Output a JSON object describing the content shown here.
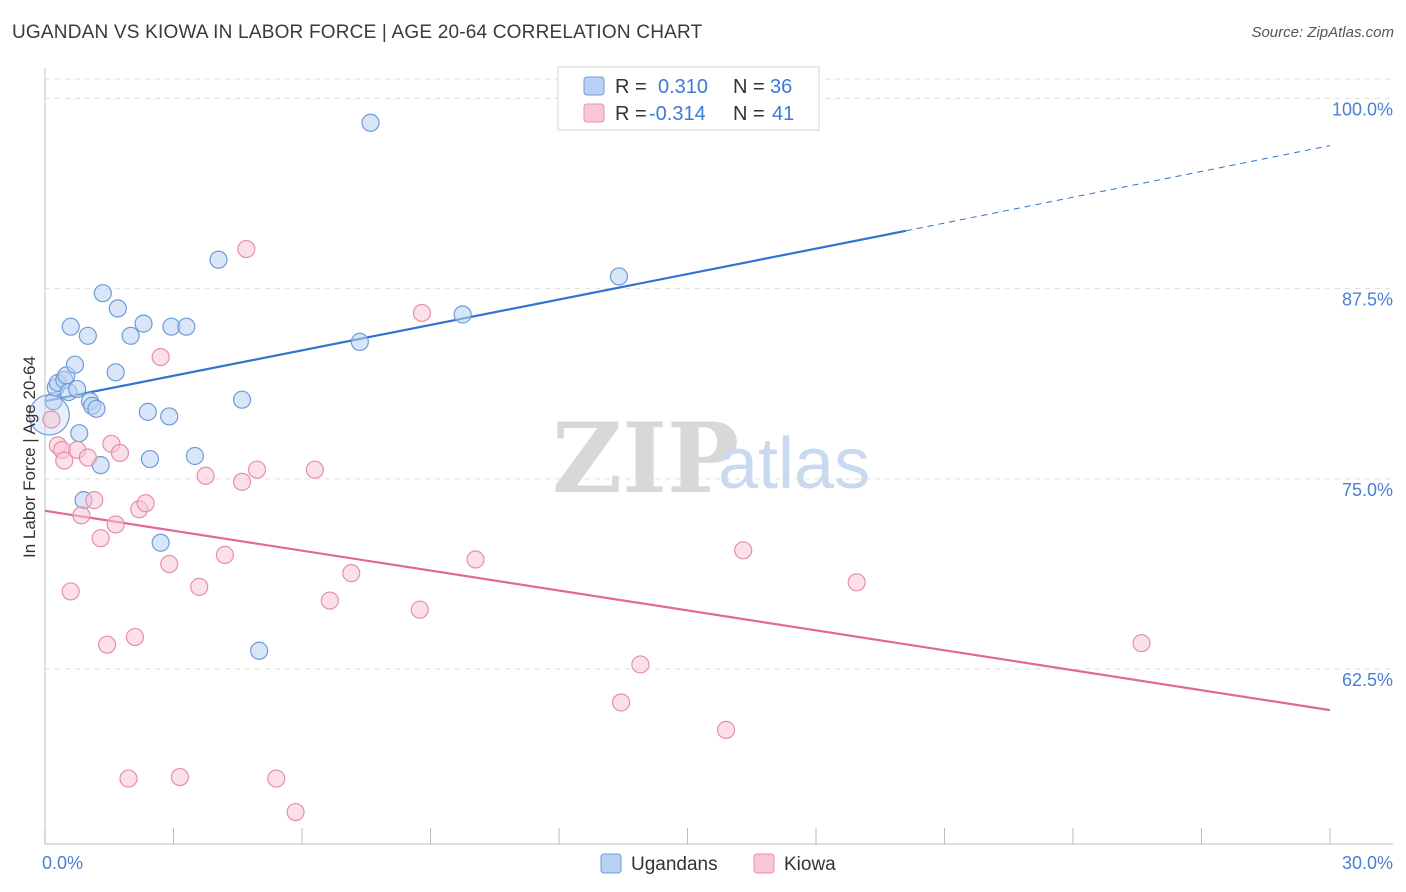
{
  "title": "UGANDAN VS KIOWA IN LABOR FORCE | AGE 20-64 CORRELATION CHART",
  "source": "Source: ZipAtlas.com",
  "watermark": {
    "zip": "ZIP",
    "atlas": "atlas"
  },
  "colors": {
    "ugandans_fill": "#b9d1f3",
    "ugandans_stroke": "#6f9bd8",
    "ugandans_line": "#2f74d0",
    "kiowa_fill": "#f8c7d6",
    "kiowa_stroke": "#e58fac",
    "kiowa_line": "#e2679a",
    "grid": "#dddddd",
    "tick_label": "#4a7fd4"
  },
  "legend": {
    "rows": [
      {
        "r_label": "R =",
        "r_value": "0.310",
        "n_label": "N =",
        "n_value": "36"
      },
      {
        "r_label": "R =",
        "r_value": "-0.314",
        "n_label": "N =",
        "n_value": "41"
      }
    ]
  },
  "bottom_legend": {
    "ugandans": "Ugandans",
    "kiowa": "Kiowa"
  },
  "chart_data": {
    "type": "scatter",
    "title": "UGANDAN VS KIOWA IN LABOR FORCE | AGE 20-64 CORRELATION CHART",
    "xlabel": "",
    "ylabel": "In Labor Force | Age 20-64",
    "xlim": [
      0,
      30
    ],
    "ylim": [
      51,
      102
    ],
    "x_tick_labels": [
      "0.0%",
      "30.0%"
    ],
    "y_ticks": [
      62.5,
      75.0,
      87.5,
      100.0
    ],
    "y_tick_labels": [
      "62.5%",
      "75.0%",
      "87.5%",
      "100.0%"
    ],
    "series": [
      {
        "name": "Ugandans",
        "points": [
          [
            0.2,
            80.1
          ],
          [
            0.25,
            81.0
          ],
          [
            0.3,
            81.3
          ],
          [
            0.45,
            81.5
          ],
          [
            0.5,
            81.8
          ],
          [
            0.55,
            80.7
          ],
          [
            0.6,
            85.0
          ],
          [
            0.7,
            82.5
          ],
          [
            0.75,
            80.9
          ],
          [
            0.8,
            78.0
          ],
          [
            0.9,
            73.6
          ],
          [
            1.0,
            84.4
          ],
          [
            1.05,
            80.1
          ],
          [
            1.1,
            79.8
          ],
          [
            1.2,
            79.6
          ],
          [
            1.3,
            75.9
          ],
          [
            1.35,
            87.2
          ],
          [
            1.65,
            82.0
          ],
          [
            1.7,
            86.2
          ],
          [
            2.0,
            84.4
          ],
          [
            2.3,
            85.2
          ],
          [
            2.4,
            79.4
          ],
          [
            2.45,
            76.3
          ],
          [
            2.7,
            70.8
          ],
          [
            2.9,
            79.1
          ],
          [
            2.95,
            85.0
          ],
          [
            3.3,
            85.0
          ],
          [
            3.5,
            76.5
          ],
          [
            4.05,
            89.4
          ],
          [
            4.6,
            80.2
          ],
          [
            5.0,
            63.7
          ],
          [
            7.35,
            84.0
          ],
          [
            7.6,
            98.4
          ],
          [
            9.75,
            85.8
          ],
          [
            13.4,
            88.3
          ],
          [
            0.1,
            79.2
          ]
        ],
        "trend": {
          "x": [
            0,
            20.1
          ],
          "y": [
            80.1,
            91.3
          ]
        },
        "trend_extension": {
          "x": [
            20.1,
            30.0
          ],
          "y": [
            91.3,
            96.9
          ]
        }
      },
      {
        "name": "Kiowa",
        "points": [
          [
            0.15,
            78.9
          ],
          [
            0.3,
            77.2
          ],
          [
            0.4,
            76.9
          ],
          [
            0.45,
            76.2
          ],
          [
            0.6,
            67.6
          ],
          [
            0.75,
            76.9
          ],
          [
            0.85,
            72.6
          ],
          [
            1.0,
            76.4
          ],
          [
            1.15,
            73.6
          ],
          [
            1.3,
            71.1
          ],
          [
            1.45,
            64.1
          ],
          [
            1.55,
            77.3
          ],
          [
            1.65,
            72.0
          ],
          [
            1.75,
            76.7
          ],
          [
            1.95,
            55.3
          ],
          [
            2.1,
            64.6
          ],
          [
            2.2,
            73.0
          ],
          [
            2.35,
            73.4
          ],
          [
            2.7,
            83.0
          ],
          [
            2.9,
            69.4
          ],
          [
            3.15,
            55.4
          ],
          [
            3.6,
            67.9
          ],
          [
            3.75,
            75.2
          ],
          [
            4.2,
            70.0
          ],
          [
            4.6,
            74.8
          ],
          [
            4.7,
            90.1
          ],
          [
            4.95,
            75.6
          ],
          [
            5.4,
            55.3
          ],
          [
            5.85,
            53.1
          ],
          [
            6.3,
            75.6
          ],
          [
            6.65,
            67.0
          ],
          [
            7.15,
            68.8
          ],
          [
            8.75,
            66.4
          ],
          [
            8.8,
            85.9
          ],
          [
            10.05,
            69.7
          ],
          [
            13.45,
            60.3
          ],
          [
            13.9,
            62.8
          ],
          [
            15.9,
            58.5
          ],
          [
            16.3,
            70.3
          ],
          [
            18.95,
            68.2
          ],
          [
            25.6,
            64.2
          ]
        ],
        "trend": {
          "x": [
            0,
            30.0
          ],
          "y": [
            72.9,
            59.8
          ]
        }
      }
    ]
  }
}
